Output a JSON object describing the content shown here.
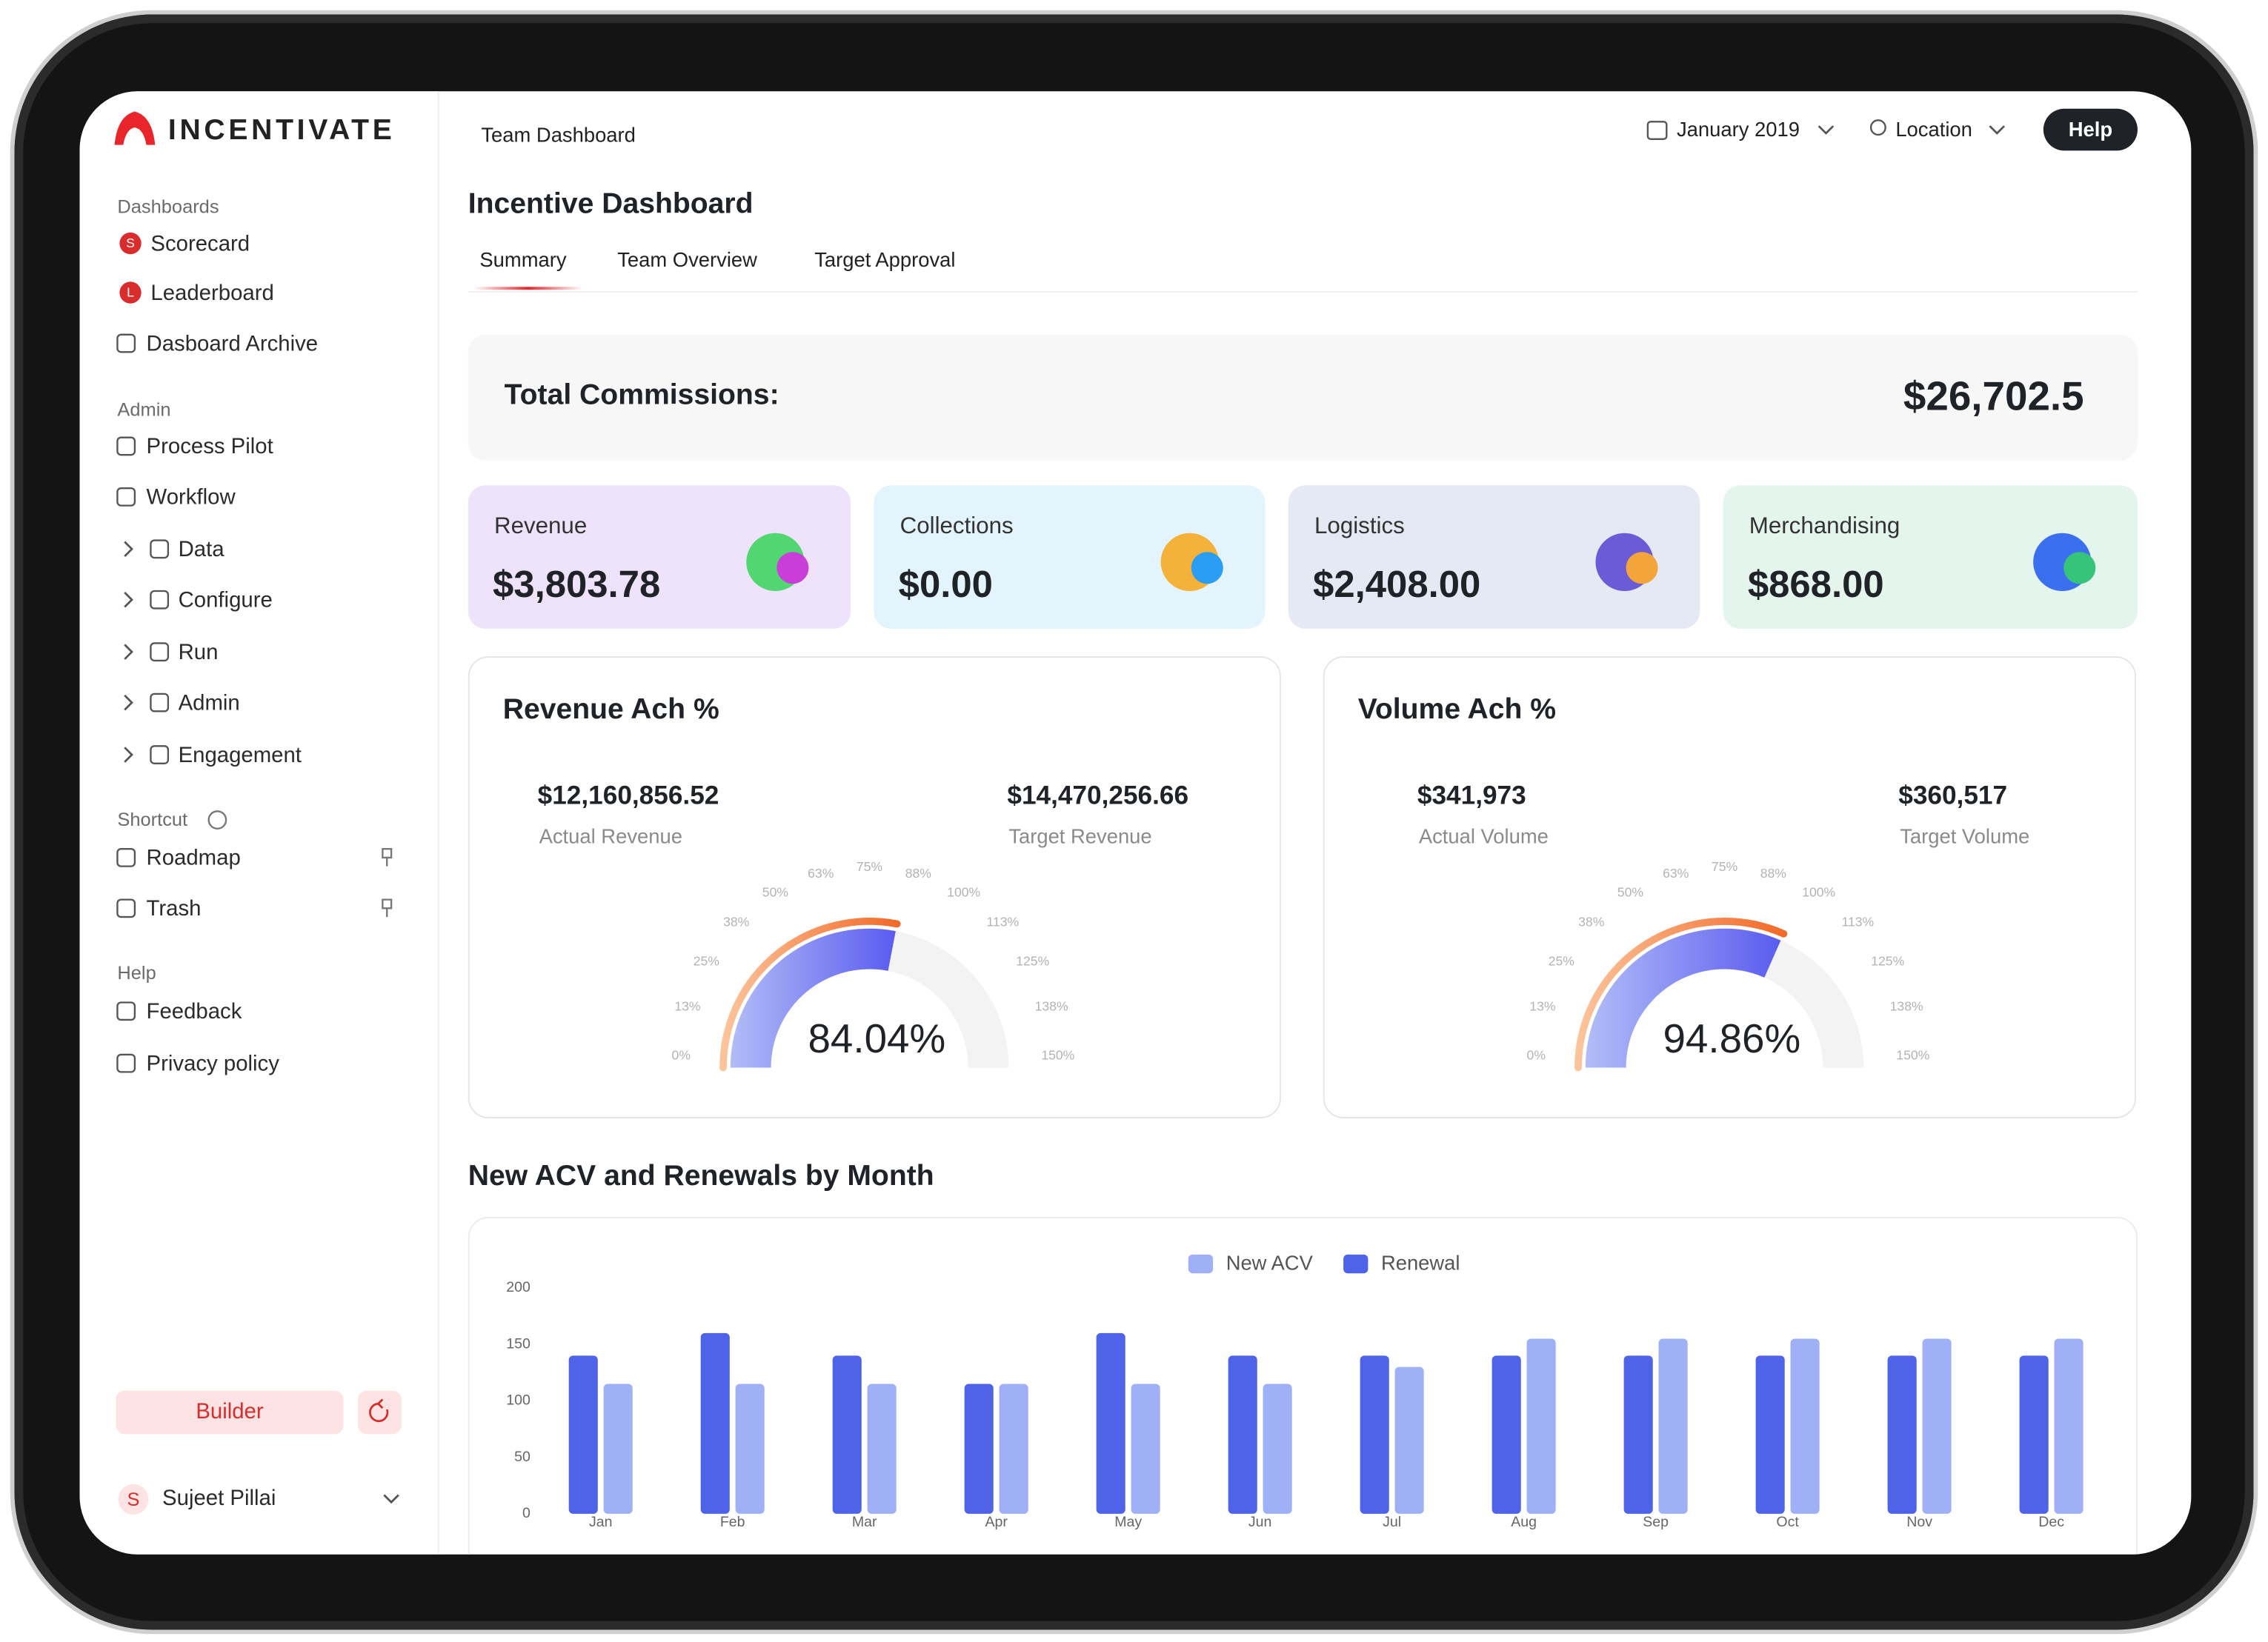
{
  "app": {
    "brand": "INCENTIVATE"
  },
  "sidebar": {
    "sections": [
      {
        "title": "Dashboards",
        "items": [
          {
            "label": "Scorecard",
            "badge": "S"
          },
          {
            "label": "Leaderboard",
            "badge": "L"
          },
          {
            "label": "Dasboard Archive"
          }
        ]
      },
      {
        "title": "Admin",
        "items": [
          {
            "label": "Process Pilot"
          },
          {
            "label": "Workflow"
          },
          {
            "label": "Data",
            "expandable": true
          },
          {
            "label": "Configure",
            "expandable": true
          },
          {
            "label": "Run",
            "expandable": true
          },
          {
            "label": "Admin",
            "expandable": true
          },
          {
            "label": "Engagement",
            "expandable": true
          }
        ]
      },
      {
        "title": "Shortcut",
        "items": [
          {
            "label": "Roadmap",
            "pinned": true
          },
          {
            "label": "Trash",
            "pinned": true
          }
        ]
      },
      {
        "title": "Help",
        "items": [
          {
            "label": "Feedback"
          },
          {
            "label": "Privacy policy"
          }
        ]
      }
    ],
    "builder": "Builder",
    "user": {
      "initial": "S",
      "name": "Sujeet Pillai"
    }
  },
  "header": {
    "breadcrumb": "Team Dashboard",
    "period": "January 2019",
    "location": "Location",
    "help": "Help"
  },
  "page": {
    "title": "Incentive Dashboard",
    "tabs": [
      "Summary",
      "Team Overview",
      "Target Approval"
    ],
    "total": {
      "label": "Total Commissions:",
      "value": "$26,702.5"
    },
    "cards": [
      {
        "label": "Revenue",
        "value": "$3,803.78",
        "color": "#efe3fb"
      },
      {
        "label": "Collections",
        "value": "$0.00",
        "color": "#e3f4fc"
      },
      {
        "label": "Logistics",
        "value": "$2,408.00",
        "color": "#e5e9f3"
      },
      {
        "label": "Merchandising",
        "value": "$868.00",
        "color": "#e3f5ec"
      }
    ]
  },
  "chart_data": [
    {
      "type": "gauge",
      "title": "Revenue Ach %",
      "value": 84.04,
      "value_label": "84.04%",
      "xlim": [
        0,
        150
      ],
      "stats": [
        {
          "value": "$12,160,856.52",
          "label": "Actual Revenue"
        },
        {
          "value": "$14,470,256.66",
          "label": "Target Revenue"
        }
      ],
      "ticks": [
        {
          "value": 0,
          "label": "0%"
        },
        {
          "value": 12.5,
          "label": "13%"
        },
        {
          "value": 25,
          "label": "25%"
        },
        {
          "value": 37.5,
          "label": "38%"
        },
        {
          "value": 50,
          "label": "50%"
        },
        {
          "value": 62.5,
          "label": "63%"
        },
        {
          "value": 75,
          "label": "75%"
        },
        {
          "value": 87.5,
          "label": "88%"
        },
        {
          "value": 100,
          "label": "100%"
        },
        {
          "value": 112.5,
          "label": "113%"
        },
        {
          "value": 125,
          "label": "125%"
        },
        {
          "value": 137.5,
          "label": "138%"
        },
        {
          "value": 150,
          "label": "150%"
        }
      ]
    },
    {
      "type": "gauge",
      "title": "Volume Ach %",
      "value": 94.86,
      "value_label": "94.86%",
      "xlim": [
        0,
        150
      ],
      "stats": [
        {
          "value": "$341,973",
          "label": "Actual Volume"
        },
        {
          "value": "$360,517",
          "label": "Target Volume"
        }
      ],
      "ticks": [
        {
          "value": 0,
          "label": "0%"
        },
        {
          "value": 12.5,
          "label": "13%"
        },
        {
          "value": 25,
          "label": "25%"
        },
        {
          "value": 37.5,
          "label": "38%"
        },
        {
          "value": 50,
          "label": "50%"
        },
        {
          "value": 62.5,
          "label": "63%"
        },
        {
          "value": 75,
          "label": "75%"
        },
        {
          "value": 87.5,
          "label": "88%"
        },
        {
          "value": 100,
          "label": "100%"
        },
        {
          "value": 112.5,
          "label": "113%"
        },
        {
          "value": 125,
          "label": "125%"
        },
        {
          "value": 137.5,
          "label": "138%"
        },
        {
          "value": 150,
          "label": "150%"
        }
      ]
    },
    {
      "type": "bar",
      "title": "New ACV and Renewals by Month",
      "legend": "top",
      "categories": [
        "Jan",
        "Feb",
        "Mar",
        "Apr",
        "May",
        "Jun",
        "Jul",
        "Aug",
        "Sep",
        "Oct",
        "Nov",
        "Dec"
      ],
      "series": [
        {
          "name": "New ACV",
          "color": "#9fb0f7",
          "values": [
            115,
            115,
            115,
            115,
            115,
            115,
            130,
            155,
            155,
            155,
            155,
            155
          ]
        },
        {
          "name": "Renewal",
          "color": "#4f63e8",
          "values": [
            140,
            160,
            140,
            115,
            160,
            140,
            140,
            140,
            140,
            140,
            140,
            140
          ]
        }
      ],
      "ylim": [
        0,
        200
      ],
      "yticks": [
        0,
        50,
        100,
        150,
        200
      ]
    }
  ]
}
